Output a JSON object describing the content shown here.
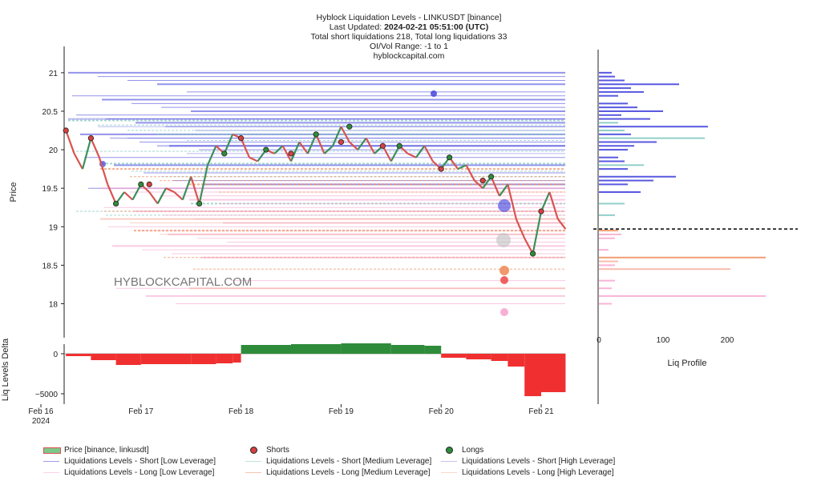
{
  "header": {
    "title": "Hyblock Liquidation Levels - LINKUSDT [binance]",
    "updated_prefix": "Last Updated: ",
    "updated_value": "2024-02-21 05:51:00 (UTC)",
    "totals": "Total short liquidations 218, Total long liquidations 33",
    "range": "OI/Vol Range: -1 to 1",
    "site": "hyblockcapital.com"
  },
  "watermark": "HYBLOCKCAPITAL.COM",
  "colors": {
    "price_up": "#d9534f",
    "price_down": "#3a8f5a",
    "shorts": "#d64040",
    "longs": "#2e8b3a",
    "short_low": "#3b3bdc",
    "short_med": "#7fc7c0",
    "short_high": "#3b3bdc",
    "long_low": "#f7a6cf",
    "long_med": "#f08d5c",
    "long_high": "#f7b0a0",
    "delta_pos": "#2e8b3a",
    "delta_neg": "#f03030",
    "current_price_line": "#000000"
  },
  "chart_data": [
    {
      "type": "line",
      "title": "Hyblock Liquidation Levels - LINKUSDT [binance]",
      "ylabel": "Price",
      "ylim": [
        17.6,
        21.3
      ],
      "yticks": [
        "21",
        "20.5",
        "20",
        "19.5",
        "19",
        "18.5",
        "18"
      ],
      "xlim": [
        "2024-02-16",
        "2024-02-21 12:00"
      ],
      "xticks": [
        "Feb 16\n2024",
        "Feb 17",
        "Feb 18",
        "Feb 19",
        "Feb 20",
        "Feb 21"
      ],
      "current_price": 18.97,
      "series": [
        {
          "name": "Price [binance, linkusdt]",
          "x": [
            "2024-02-16 06:00",
            "2024-02-16 08:00",
            "2024-02-16 10:00",
            "2024-02-16 12:00",
            "2024-02-16 14:00",
            "2024-02-16 16:00",
            "2024-02-16 18:00",
            "2024-02-16 20:00",
            "2024-02-16 22:00",
            "2024-02-17 00:00",
            "2024-02-17 02:00",
            "2024-02-17 04:00",
            "2024-02-17 06:00",
            "2024-02-17 08:00",
            "2024-02-17 10:00",
            "2024-02-17 12:00",
            "2024-02-17 14:00",
            "2024-02-17 16:00",
            "2024-02-17 18:00",
            "2024-02-17 20:00",
            "2024-02-17 22:00",
            "2024-02-18 00:00",
            "2024-02-18 02:00",
            "2024-02-18 04:00",
            "2024-02-18 06:00",
            "2024-02-18 08:00",
            "2024-02-18 10:00",
            "2024-02-18 12:00",
            "2024-02-18 14:00",
            "2024-02-18 16:00",
            "2024-02-18 18:00",
            "2024-02-18 20:00",
            "2024-02-18 22:00",
            "2024-02-19 00:00",
            "2024-02-19 02:00",
            "2024-02-19 04:00",
            "2024-02-19 06:00",
            "2024-02-19 08:00",
            "2024-02-19 10:00",
            "2024-02-19 12:00",
            "2024-02-19 14:00",
            "2024-02-19 16:00",
            "2024-02-19 18:00",
            "2024-02-19 20:00",
            "2024-02-19 22:00",
            "2024-02-20 00:00",
            "2024-02-20 02:00",
            "2024-02-20 04:00",
            "2024-02-20 06:00",
            "2024-02-20 08:00",
            "2024-02-20 10:00",
            "2024-02-20 12:00",
            "2024-02-20 14:00",
            "2024-02-20 16:00",
            "2024-02-20 18:00",
            "2024-02-20 20:00",
            "2024-02-20 22:00",
            "2024-02-21 00:00",
            "2024-02-21 02:00",
            "2024-02-21 04:00",
            "2024-02-21 05:51"
          ],
          "y": [
            20.25,
            19.95,
            19.75,
            20.15,
            19.9,
            19.55,
            19.3,
            19.45,
            19.35,
            19.55,
            19.45,
            19.3,
            19.5,
            19.45,
            19.35,
            19.65,
            19.3,
            19.8,
            20.05,
            19.95,
            20.2,
            20.15,
            19.9,
            19.85,
            20.0,
            19.95,
            20.05,
            19.85,
            20.1,
            19.95,
            20.2,
            19.95,
            20.05,
            20.3,
            20.1,
            20.0,
            20.15,
            19.95,
            20.05,
            19.85,
            20.05,
            19.95,
            19.9,
            20.05,
            19.85,
            19.75,
            19.9,
            19.75,
            19.8,
            19.6,
            19.5,
            19.65,
            19.4,
            19.55,
            19.1,
            18.85,
            18.65,
            19.2,
            19.45,
            19.1,
            18.97
          ]
        },
        {
          "name": "Liquidations Levels - Short [Low Leverage]",
          "levels": [
            21.0,
            20.95,
            20.9,
            20.85,
            20.75,
            20.7,
            20.65,
            20.6,
            20.55,
            20.5,
            20.45,
            20.4,
            20.35,
            20.3,
            20.25,
            20.2,
            20.15,
            20.1,
            20.05,
            20.0,
            19.9,
            19.8,
            19.7,
            19.6,
            19.55,
            19.5
          ]
        },
        {
          "name": "Liquidations Levels - Short [Medium Leverage]",
          "levels": [
            20.38,
            20.32,
            20.25,
            20.2,
            20.12,
            19.98,
            19.82,
            19.72,
            19.65,
            19.3,
            19.2,
            19.15
          ]
        },
        {
          "name": "Liquidations Levels - Short [High Leverage]",
          "levels": [
            20.4,
            20.3,
            20.15,
            20.05,
            19.95
          ]
        },
        {
          "name": "Liquidations Levels - Long [Low Leverage]",
          "levels": [
            19.5,
            19.45,
            19.4,
            19.35,
            19.3,
            19.25,
            19.2,
            19.15,
            19.1,
            19.05,
            19.0,
            18.95,
            18.9,
            18.85,
            18.8,
            18.75,
            18.7,
            18.65,
            18.6,
            18.3,
            18.2,
            18.1,
            18.0
          ]
        },
        {
          "name": "Liquidations Levels - Long [Medium Leverage]",
          "levels": [
            19.75,
            19.65,
            19.6,
            19.55,
            19.45,
            19.2,
            18.95,
            18.6,
            18.45
          ]
        },
        {
          "name": "Liquidations Levels - Long [High Leverage]",
          "levels": [
            19.1,
            19.05,
            18.9,
            18.2
          ]
        },
        {
          "name": "Shorts",
          "x": [
            "2024-02-16 06:00",
            "2024-02-16 12:00",
            "2024-02-17 02:00",
            "2024-02-18 00:00",
            "2024-02-18 12:00",
            "2024-02-19 00:00",
            "2024-02-19 10:00",
            "2024-02-20 00:00",
            "2024-02-20 10:00",
            "2024-02-21 00:00"
          ],
          "y": [
            20.25,
            20.15,
            19.55,
            20.15,
            19.95,
            20.1,
            20.05,
            19.75,
            19.6,
            19.2
          ]
        },
        {
          "name": "Longs",
          "x": [
            "2024-02-16 18:00",
            "2024-02-17 00:00",
            "2024-02-17 14:00",
            "2024-02-17 20:00",
            "2024-02-18 06:00",
            "2024-02-18 18:00",
            "2024-02-19 02:00",
            "2024-02-19 14:00",
            "2024-02-20 02:00",
            "2024-02-20 12:00",
            "2024-02-20 22:00"
          ],
          "y": [
            19.3,
            19.55,
            19.3,
            19.95,
            20.0,
            20.2,
            20.3,
            20.05,
            19.9,
            19.65,
            18.65
          ]
        }
      ],
      "legend": "bottom"
    },
    {
      "type": "area",
      "ylabel": "Liq Levels Delta",
      "yticks": [
        "0",
        "−5000"
      ],
      "ylim": [
        -6500,
        1800
      ],
      "x": [
        "2024-02-16 06:00",
        "2024-02-16 12:00",
        "2024-02-16 18:00",
        "2024-02-17 00:00",
        "2024-02-17 12:00",
        "2024-02-17 18:00",
        "2024-02-17 22:00",
        "2024-02-18 00:00",
        "2024-02-18 12:00",
        "2024-02-19 00:00",
        "2024-02-19 12:00",
        "2024-02-19 20:00",
        "2024-02-20 00:00",
        "2024-02-20 06:00",
        "2024-02-20 12:00",
        "2024-02-20 16:00",
        "2024-02-20 20:00",
        "2024-02-21 00:00",
        "2024-02-21 05:51"
      ],
      "values": [
        -300,
        -800,
        -1400,
        -1300,
        -1300,
        -1200,
        -1100,
        1100,
        1200,
        1300,
        1100,
        1000,
        -500,
        -700,
        -900,
        -1600,
        -5300,
        -4800,
        -3800
      ]
    },
    {
      "type": "bar",
      "orientation": "horizontal",
      "xlabel": "Liq Profile",
      "xticks": [
        "0",
        "100",
        "200"
      ],
      "xlim": [
        0,
        260
      ],
      "ylim": [
        17.6,
        21.3
      ],
      "categories": [
        21.0,
        20.95,
        20.9,
        20.85,
        20.8,
        20.75,
        20.7,
        20.6,
        20.55,
        20.5,
        20.45,
        20.4,
        20.35,
        20.3,
        20.25,
        20.2,
        20.15,
        20.1,
        20.05,
        20.0,
        19.9,
        19.85,
        19.8,
        19.75,
        19.65,
        19.6,
        19.55,
        19.45,
        19.3,
        19.15,
        18.95,
        18.9,
        18.85,
        18.7,
        18.6,
        18.55,
        18.5,
        18.45,
        18.3,
        18.2,
        18.1,
        18.0
      ],
      "values": [
        20,
        25,
        40,
        125,
        50,
        70,
        30,
        45,
        60,
        100,
        35,
        80,
        30,
        170,
        40,
        50,
        165,
        90,
        55,
        45,
        30,
        40,
        70,
        45,
        120,
        85,
        45,
        65,
        40,
        25,
        30,
        35,
        25,
        15,
        260,
        30,
        25,
        205,
        25,
        20,
        260,
        20
      ],
      "series_colors": [
        "short_low",
        "short_low",
        "short_low",
        "short_low",
        "short_low",
        "short_low",
        "short_low",
        "short_low",
        "short_low",
        "short_low",
        "short_low",
        "short_low",
        "short_med",
        "short_low",
        "short_med",
        "short_low",
        "short_med",
        "short_low",
        "short_low",
        "short_low",
        "short_low",
        "short_low",
        "short_med",
        "short_low",
        "short_low",
        "short_low",
        "short_low",
        "short_low",
        "short_med",
        "short_med",
        "long_med",
        "long_low",
        "long_low",
        "long_low",
        "long_med",
        "long_high",
        "long_low",
        "long_high",
        "long_low",
        "long_low",
        "long_low",
        "long_low"
      ]
    }
  ],
  "legend": {
    "items": [
      {
        "label": "Price [binance, linkusdt]",
        "kind": "candle"
      },
      {
        "label": "Shorts",
        "kind": "dot-red"
      },
      {
        "label": "Longs",
        "kind": "dot-green"
      },
      {
        "label": "Liquidations Levels - Short [Low Leverage]",
        "kind": "line-blue"
      },
      {
        "label": "Liquidations Levels - Short [Medium Leverage]",
        "kind": "line-teal"
      },
      {
        "label": "Liquidations Levels - Short [High Leverage]",
        "kind": "line-blue2"
      },
      {
        "label": "Liquidations Levels - Long [Low Leverage]",
        "kind": "line-pink"
      },
      {
        "label": "Liquidations Levels - Long [Medium Leverage]",
        "kind": "line-orange"
      },
      {
        "label": "Liquidations Levels - Long [High Leverage]",
        "kind": "line-salmon"
      }
    ]
  }
}
